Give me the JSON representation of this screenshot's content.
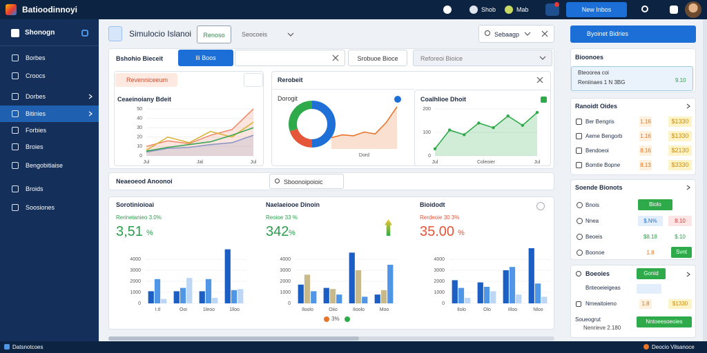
{
  "topbar": {
    "brand": "Batioodinnoyi",
    "links": [
      "Shob",
      "Mab"
    ],
    "button": "New Inbos"
  },
  "sidebar": {
    "header": "Shonogn",
    "items": [
      "Borbes",
      "Croocs",
      "Dorbes",
      "Bitinies",
      "Forbies",
      "Broies",
      "Bengobitiaise",
      "Broids",
      "Soosiones"
    ],
    "active": 3
  },
  "header": {
    "title": "Simulocio Islanoi",
    "tab": "Renoso",
    "dropdown": "Seocoeis",
    "search": "Sebaagp"
  },
  "filters": {
    "label": "Bshohio Bieceit",
    "button": "Ili Boos",
    "select1": "Srobuoe Bioce",
    "select2": "Reforeoi Bioice"
  },
  "cards": [
    {
      "button": "Revenniceeum",
      "title": "Ceaeinoiany Bdeit",
      "chart": {
        "ylim": [
          0,
          50
        ],
        "yticks": [
          0,
          10,
          20,
          30,
          40,
          50
        ],
        "xlabels": [
          "Jul",
          "Jal",
          "Jul"
        ],
        "series": [
          {
            "color": "#6f9be0",
            "values": [
              4,
              8,
              9,
              12,
              14,
              22
            ],
            "area": true
          },
          {
            "color": "#f08a6a",
            "values": [
              10,
              16,
              13,
              22,
              28,
              50
            ],
            "area": true
          },
          {
            "color": "#d9b43a",
            "values": [
              6,
              20,
              14,
              26,
              20,
              36
            ]
          },
          {
            "color": "#3aa655",
            "values": [
              5,
              9,
              12,
              15,
              22,
              30
            ]
          }
        ]
      }
    },
    {
      "title": "Rerobeit",
      "subtitle": "Dorogit",
      "donut": {
        "values": [
          50,
          20,
          30
        ],
        "colors": [
          "#1e6fd6",
          "#e4553a",
          "#2eaa4a"
        ]
      },
      "chart": {
        "ylim": [
          0,
          50
        ],
        "xlabels": [
          "Dord"
        ],
        "series": [
          {
            "color": "#e8742a",
            "values": [
              12,
              15,
              14,
              18,
              16,
              28,
              45
            ],
            "area": true
          }
        ]
      }
    },
    {
      "title": "Coalhlioe Dhoit",
      "chart": {
        "ylim": [
          0,
          200
        ],
        "yticks": [
          0,
          100,
          200
        ],
        "xlabels": [
          "Jul",
          "Coleoier",
          "Jul"
        ],
        "series": [
          {
            "color": "#2eaa4a",
            "values": [
              30,
              110,
              90,
              140,
              120,
              170,
              130,
              185
            ],
            "area": true,
            "markers": true
          }
        ]
      }
    }
  ],
  "section": {
    "title": "Neaeoeod Anoonoi",
    "search": "Sboonoipoioic"
  },
  "bars": [
    {
      "title": "Sorotinioioai",
      "subtitle": "Rerinetanieo 3.0%",
      "value": "3,51",
      "unit": "%",
      "accent": "#2a9d4a",
      "chart": {
        "ylim": [
          0,
          5000
        ],
        "yticks": [
          0,
          1000,
          2000,
          3000,
          4000
        ],
        "categories": [
          "I.tl",
          "Ooi",
          "1leoo",
          "1lloo"
        ],
        "series": [
          {
            "color": "#1c5fc4",
            "values": [
              1100,
              1100,
              1100,
              4900
            ]
          },
          {
            "color": "#4f97e6",
            "values": [
              2200,
              1400,
              2200,
              1200
            ]
          },
          {
            "color": "#bcd6f5",
            "values": [
              400,
              2300,
              500,
              1300
            ]
          }
        ]
      }
    },
    {
      "title": "Naelaeiooe Dinoin",
      "subtitle": "Reoioe 33 %",
      "value": "342",
      "unit": "%",
      "accent": "#2a9d4a",
      "chart": {
        "ylim": [
          0,
          5000
        ],
        "yticks": [
          0,
          1000,
          2000,
          3000,
          4000
        ],
        "categories": [
          "Iloolo",
          "Oiio",
          "IIoolo",
          "Moo"
        ],
        "series": [
          {
            "color": "#1c5fc4",
            "values": [
              1700,
              1400,
              4600,
              800
            ]
          },
          {
            "color": "#c8b98a",
            "values": [
              2600,
              1300,
              3000,
              1200
            ]
          },
          {
            "color": "#4f97e6",
            "values": [
              1100,
              800,
              600,
              3500
            ]
          }
        ]
      }
    },
    {
      "title": "Bioidodt",
      "subtitle": "Rerdeoie 30 3%",
      "value": "35.00",
      "unit": "%",
      "accent": "#e4553a",
      "chart": {
        "ylim": [
          0,
          5000
        ],
        "yticks": [
          0,
          1000,
          2000,
          3000,
          4000
        ],
        "categories": [
          "Ilolo",
          "Olo",
          "IIloo",
          "Nloo"
        ],
        "series": [
          {
            "color": "#1c5fc4",
            "values": [
              2100,
              1900,
              3000,
              5000
            ]
          },
          {
            "color": "#4f97e6",
            "values": [
              1400,
              1500,
              3300,
              1800
            ]
          },
          {
            "color": "#bcd6f5",
            "values": [
              500,
              1100,
              800,
              600
            ]
          }
        ]
      }
    }
  ],
  "legend": [
    {
      "label": "3%",
      "color": "#e8742a"
    },
    {
      "color": "#2eaa4a"
    }
  ],
  "right": {
    "button": "Byoinet Bidries",
    "summary": {
      "title": "Bioonoes",
      "subtitle": "Bteoorea coi",
      "line": "Reniinaes 1 N 3BG",
      "value": "9.10"
    },
    "orders": {
      "title": "Ranoidt Oides",
      "rows": [
        {
          "label": "Ber Bengris",
          "a": "1.16",
          "b": "$1330"
        },
        {
          "label": "Aeme Bengorb",
          "a": "1.16",
          "b": "$1330"
        },
        {
          "label": "Bendoeoi",
          "a": "8.16",
          "b": "$2130"
        },
        {
          "label": "Bomtie Bopne",
          "a": "8.13",
          "b": "$3330"
        }
      ]
    },
    "stats": {
      "title": "Soende Bionots",
      "rows": [
        {
          "label": "Bnois",
          "button": "Biolo"
        },
        {
          "label": "Nnea",
          "a": "$.N%",
          "b": "8.10"
        },
        {
          "label": "Beoeis",
          "a": "$8.18",
          "b": "$.10"
        },
        {
          "label": "Boonoe",
          "a": "1.8",
          "button": "Svnt"
        }
      ]
    },
    "footer": {
      "title": "Boeoies",
      "button": "Gonid",
      "rows": [
        {
          "label": "Bnteoeieigeas"
        },
        {
          "label": "Nmeaitoieno",
          "a": "1.8",
          "b": "$1330"
        },
        {
          "label": "Soueogrut",
          "sub": "Nenrieve 2.180",
          "button": "Nntoeesoeoies"
        }
      ]
    }
  },
  "statusbar": {
    "left": "Datsnotcoes",
    "right": "Deocio Vilsanoce"
  }
}
